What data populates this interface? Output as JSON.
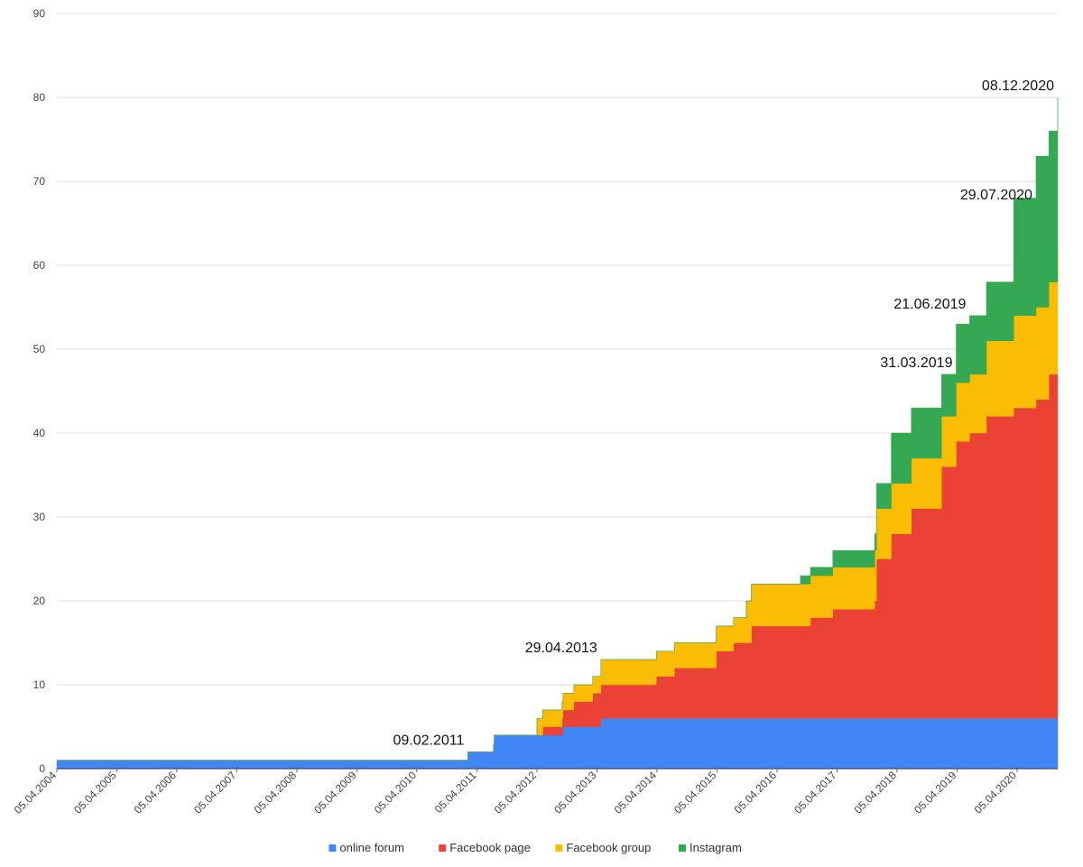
{
  "chart_data": {
    "type": "area",
    "stacked": true,
    "title": "",
    "xlabel": "",
    "ylabel": "",
    "ylim": [
      0,
      90
    ],
    "xlim": [
      "2004-04-05",
      "2020-12-08"
    ],
    "y_ticks": [
      0,
      10,
      20,
      30,
      40,
      50,
      60,
      70,
      80,
      90
    ],
    "x_ticks": [
      {
        "date": "2004-04-05",
        "label": "05.04.2004"
      },
      {
        "date": "2005-04-05",
        "label": "05.04.2005"
      },
      {
        "date": "2006-04-05",
        "label": "05.04.2006"
      },
      {
        "date": "2007-04-05",
        "label": "05.04.2007"
      },
      {
        "date": "2008-04-05",
        "label": "05.04.2008"
      },
      {
        "date": "2009-04-05",
        "label": "05.04.2009"
      },
      {
        "date": "2010-04-05",
        "label": "05.04.2010"
      },
      {
        "date": "2011-04-05",
        "label": "05.04.2011"
      },
      {
        "date": "2012-04-05",
        "label": "05.04.2012"
      },
      {
        "date": "2013-04-05",
        "label": "05.04.2013"
      },
      {
        "date": "2014-04-05",
        "label": "05.04.2014"
      },
      {
        "date": "2015-04-05",
        "label": "05.04.2015"
      },
      {
        "date": "2016-04-05",
        "label": "05.04.2016"
      },
      {
        "date": "2017-04-05",
        "label": "05.04.2017"
      },
      {
        "date": "2018-04-05",
        "label": "05.04.2018"
      },
      {
        "date": "2019-04-05",
        "label": "05.04.2019"
      },
      {
        "date": "2020-04-05",
        "label": "05.04.2020"
      }
    ],
    "grid": true,
    "legend_position": "bottom",
    "series": [
      {
        "name": "online forum",
        "color": "#4285F4",
        "points": [
          {
            "date": "2004-04-05",
            "value": 1
          },
          {
            "date": "2011-02-09",
            "value": 2
          },
          {
            "date": "2011-07-15",
            "value": 3
          },
          {
            "date": "2011-07-20",
            "value": 4
          },
          {
            "date": "2012-09-05",
            "value": 4
          },
          {
            "date": "2012-09-10",
            "value": 5
          },
          {
            "date": "2013-03-10",
            "value": 5
          },
          {
            "date": "2013-04-29",
            "value": 6
          },
          {
            "date": "2020-12-08",
            "value": 6
          }
        ]
      },
      {
        "name": "Facebook page",
        "color": "#EA4335",
        "points": [
          {
            "date": "2004-04-05",
            "value": 0
          },
          {
            "date": "2012-05-01",
            "value": 0
          },
          {
            "date": "2012-05-10",
            "value": 1
          },
          {
            "date": "2012-09-05",
            "value": 2
          },
          {
            "date": "2012-09-10",
            "value": 2
          },
          {
            "date": "2012-11-15",
            "value": 3
          },
          {
            "date": "2013-03-10",
            "value": 4
          },
          {
            "date": "2013-04-29",
            "value": 4
          },
          {
            "date": "2014-04-01",
            "value": 5
          },
          {
            "date": "2014-07-20",
            "value": 6
          },
          {
            "date": "2014-12-01",
            "value": 6
          },
          {
            "date": "2015-04-01",
            "value": 8
          },
          {
            "date": "2015-07-15",
            "value": 9
          },
          {
            "date": "2015-11-01",
            "value": 11
          },
          {
            "date": "2016-04-10",
            "value": 11
          },
          {
            "date": "2016-08-25",
            "value": 11
          },
          {
            "date": "2016-10-25",
            "value": 12
          },
          {
            "date": "2017-03-10",
            "value": 13
          },
          {
            "date": "2017-11-20",
            "value": 14
          },
          {
            "date": "2017-12-01",
            "value": 19
          },
          {
            "date": "2018-03-01",
            "value": 22
          },
          {
            "date": "2018-07-01",
            "value": 25
          },
          {
            "date": "2019-01-01",
            "value": 30
          },
          {
            "date": "2019-03-31",
            "value": 33
          },
          {
            "date": "2019-06-21",
            "value": 34
          },
          {
            "date": "2019-10-01",
            "value": 36
          },
          {
            "date": "2020-01-01",
            "value": 36
          },
          {
            "date": "2020-03-15",
            "value": 37
          },
          {
            "date": "2020-07-29",
            "value": 38
          },
          {
            "date": "2020-10-15",
            "value": 41
          },
          {
            "date": "2020-12-08",
            "value": 41
          }
        ]
      },
      {
        "name": "Facebook group",
        "color": "#FBBC04",
        "points": [
          {
            "date": "2004-04-05",
            "value": 0
          },
          {
            "date": "2011-07-20",
            "value": 0
          },
          {
            "date": "2012-04-05",
            "value": 2
          },
          {
            "date": "2012-09-05",
            "value": 2
          },
          {
            "date": "2013-01-01",
            "value": 2
          },
          {
            "date": "2013-04-29",
            "value": 3
          },
          {
            "date": "2014-04-01",
            "value": 3
          },
          {
            "date": "2015-04-01",
            "value": 3
          },
          {
            "date": "2015-10-01",
            "value": 5
          },
          {
            "date": "2016-04-10",
            "value": 5
          },
          {
            "date": "2016-08-25",
            "value": 5
          },
          {
            "date": "2017-03-10",
            "value": 5
          },
          {
            "date": "2017-11-20",
            "value": 6
          },
          {
            "date": "2017-12-01",
            "value": 6
          },
          {
            "date": "2018-07-01",
            "value": 6
          },
          {
            "date": "2019-01-01",
            "value": 6
          },
          {
            "date": "2019-03-31",
            "value": 7
          },
          {
            "date": "2019-06-21",
            "value": 7
          },
          {
            "date": "2019-10-01",
            "value": 9
          },
          {
            "date": "2020-03-15",
            "value": 11
          },
          {
            "date": "2020-07-29",
            "value": 11
          },
          {
            "date": "2020-12-08",
            "value": 15
          }
        ]
      },
      {
        "name": "Instagram",
        "color": "#34A853",
        "points": [
          {
            "date": "2004-04-05",
            "value": 0
          },
          {
            "date": "2016-04-10",
            "value": 0
          },
          {
            "date": "2016-08-25",
            "value": 1
          },
          {
            "date": "2017-03-10",
            "value": 2
          },
          {
            "date": "2017-11-20",
            "value": 2
          },
          {
            "date": "2017-12-01",
            "value": 3
          },
          {
            "date": "2018-03-01",
            "value": 6
          },
          {
            "date": "2018-07-01",
            "value": 6
          },
          {
            "date": "2019-01-01",
            "value": 5
          },
          {
            "date": "2019-03-31",
            "value": 7
          },
          {
            "date": "2019-06-21",
            "value": 7
          },
          {
            "date": "2019-10-01",
            "value": 7
          },
          {
            "date": "2020-03-15",
            "value": 14
          },
          {
            "date": "2020-07-29",
            "value": 18
          },
          {
            "date": "2020-12-08",
            "value": 18
          }
        ]
      }
    ],
    "annotations": [
      {
        "label": "09.02.2011",
        "date": "2011-02-09",
        "value": 2
      },
      {
        "label": "29.04.2013",
        "date": "2013-04-29",
        "value": 13
      },
      {
        "label": "31.03.2019",
        "date": "2019-03-31",
        "value": 47
      },
      {
        "label": "21.06.2019",
        "date": "2019-06-21",
        "value": 54
      },
      {
        "label": "29.07.2020",
        "date": "2020-07-29",
        "value": 67
      },
      {
        "label": "08.12.2020",
        "date": "2020-12-08",
        "value": 80
      }
    ]
  }
}
